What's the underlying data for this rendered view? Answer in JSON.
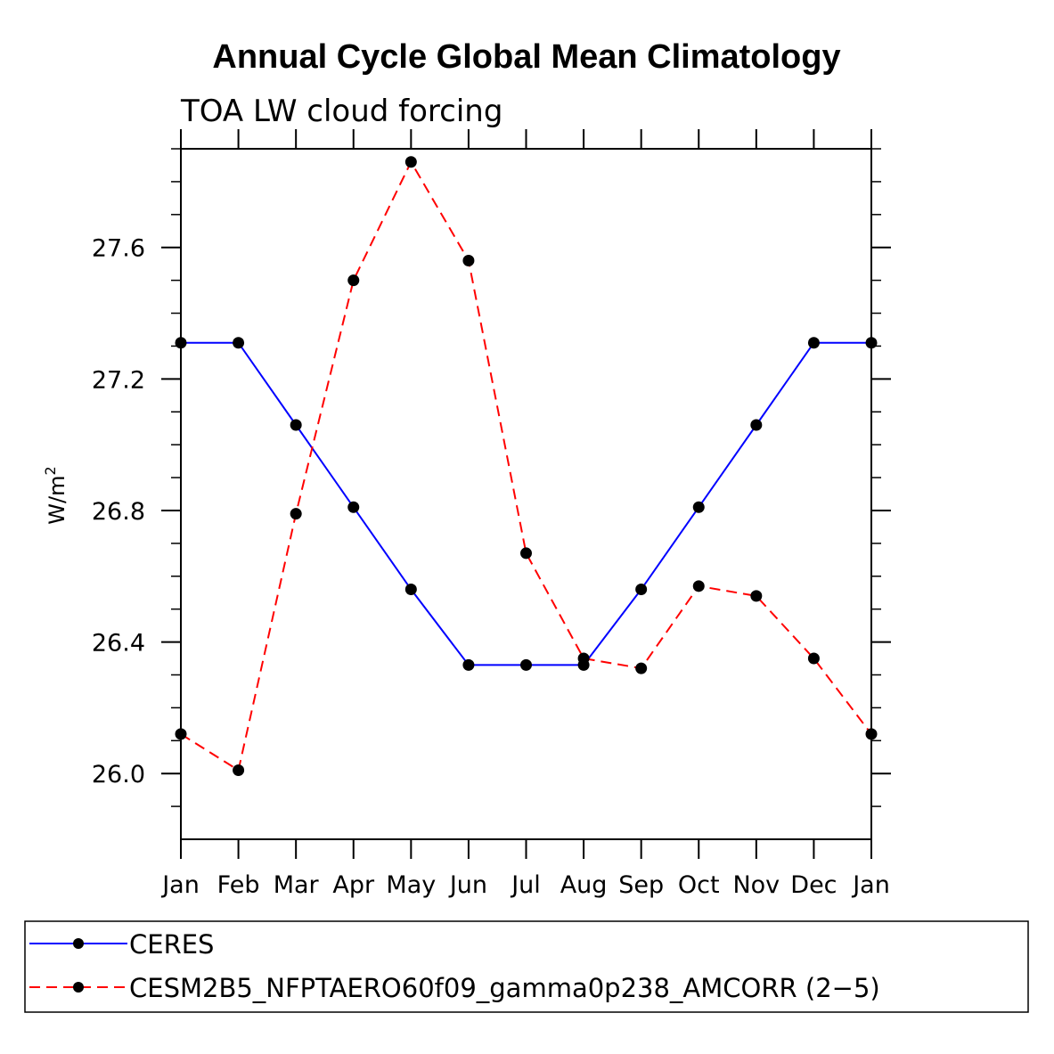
{
  "chart_data": {
    "type": "line",
    "title": "Annual Cycle Global Mean Climatology",
    "subtitle": "TOA LW cloud forcing",
    "ylabel": "W/m",
    "ylabel_superscript": "2",
    "xlabel": "",
    "categories": [
      "Jan",
      "Feb",
      "Mar",
      "Apr",
      "May",
      "Jun",
      "Jul",
      "Aug",
      "Sep",
      "Oct",
      "Nov",
      "Dec",
      "Jan"
    ],
    "ylim": [
      25.8,
      27.9
    ],
    "yticks": [
      26.0,
      26.4,
      26.8,
      27.2,
      27.6
    ],
    "ytick_labels": [
      "26.0",
      "26.4",
      "26.8",
      "27.2",
      "27.6"
    ],
    "grid": false,
    "legend_position": "bottom",
    "series": [
      {
        "name": "CERES",
        "color": "#0000ff",
        "dashed": false,
        "values": [
          27.31,
          27.31,
          27.06,
          26.81,
          26.56,
          26.33,
          26.33,
          26.33,
          26.56,
          26.81,
          27.06,
          27.31,
          27.31
        ]
      },
      {
        "name": "CESM2B5_NFPTAERO60f09_gamma0p238_AMCORR (2−5)",
        "color": "#ff0000",
        "dashed": true,
        "values": [
          26.12,
          26.01,
          26.79,
          27.5,
          27.86,
          27.56,
          26.67,
          26.35,
          26.32,
          26.57,
          26.54,
          26.35,
          26.12
        ]
      }
    ]
  }
}
